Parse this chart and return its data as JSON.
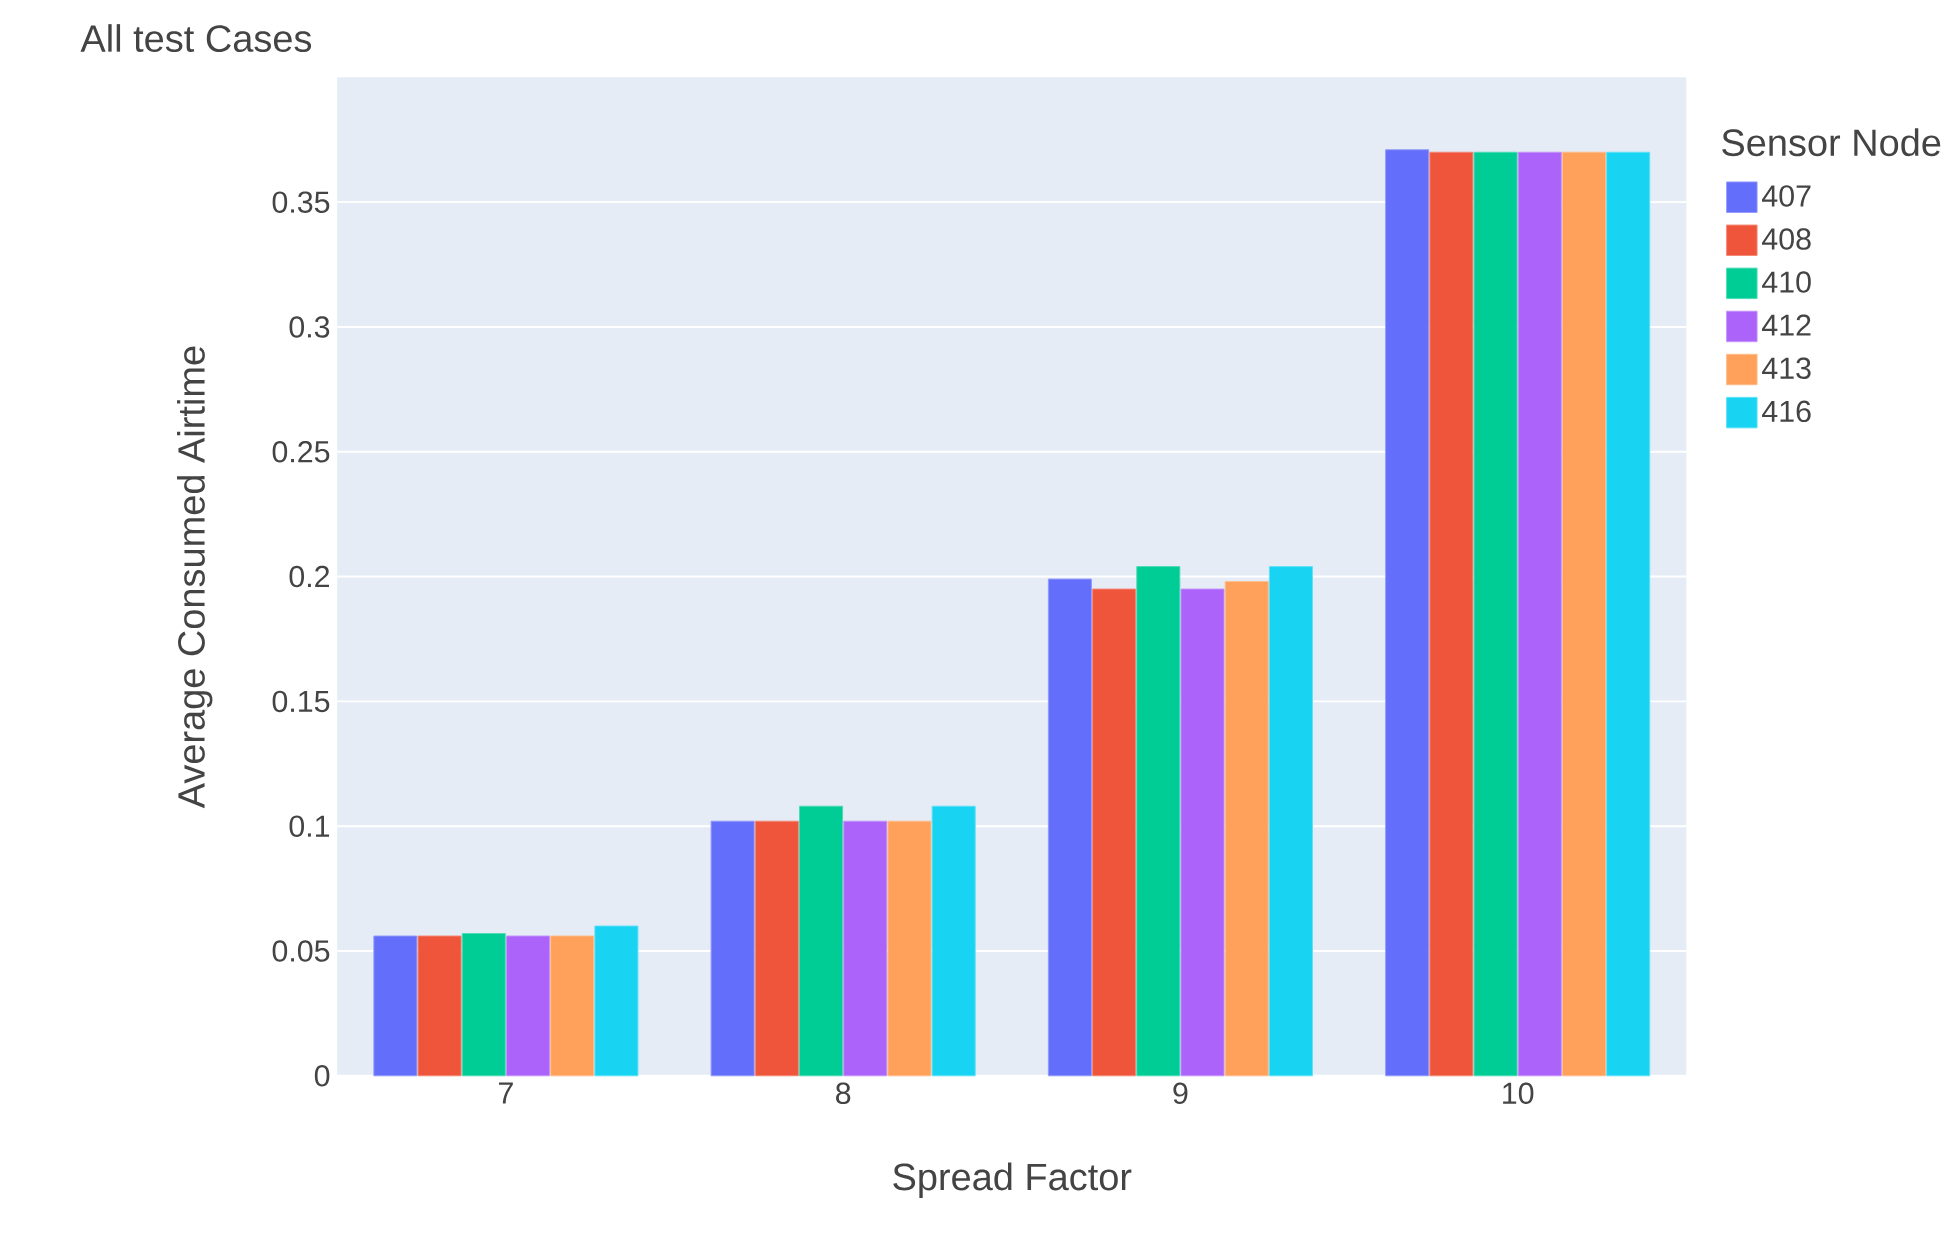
{
  "chart_data": {
    "type": "bar",
    "title": "All test Cases",
    "xlabel": "Spread Factor",
    "ylabel": "Average Consumed Airtime",
    "legend_title": "Sensor Node",
    "categories": [
      "7",
      "8",
      "9",
      "10"
    ],
    "series": [
      {
        "name": "407",
        "color": "#636efa",
        "values": [
          0.056,
          0.102,
          0.199,
          0.371
        ]
      },
      {
        "name": "408",
        "color": "#ef553b",
        "values": [
          0.056,
          0.102,
          0.195,
          0.37
        ]
      },
      {
        "name": "410",
        "color": "#00cc96",
        "values": [
          0.057,
          0.108,
          0.204,
          0.37
        ]
      },
      {
        "name": "412",
        "color": "#ab63fa",
        "values": [
          0.056,
          0.102,
          0.195,
          0.37
        ]
      },
      {
        "name": "413",
        "color": "#ffa15a",
        "values": [
          0.056,
          0.102,
          0.198,
          0.37
        ]
      },
      {
        "name": "416",
        "color": "#19d3f3",
        "values": [
          0.06,
          0.108,
          0.204,
          0.37
        ]
      }
    ],
    "ylim": [
      0,
      0.4
    ],
    "yticks": [
      {
        "value": 0,
        "label": "0"
      },
      0.05,
      {
        "value": 0.1,
        "label": "0.1"
      },
      0.15,
      {
        "value": 0.2,
        "label": "0.2"
      },
      0.25,
      {
        "value": 0.3,
        "label": "0.3"
      },
      0.35
    ],
    "grid": "y",
    "legend": "right"
  }
}
